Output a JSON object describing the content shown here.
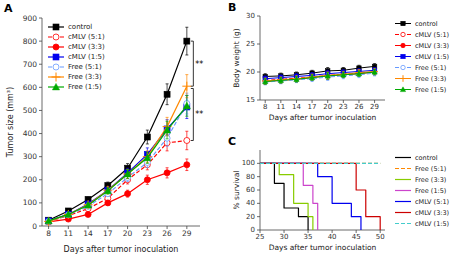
{
  "chart_data": [
    {
      "type": "line",
      "title": "A",
      "x_label": "Days after tumor inoculation",
      "y_label": "Tumor size (mm³)",
      "x": [
        8,
        11,
        14,
        17,
        20,
        23,
        26,
        29
      ],
      "xlim": [
        7,
        31
      ],
      "ylim": [
        0,
        900
      ],
      "xticks": [
        8,
        11,
        14,
        17,
        20,
        23,
        26,
        29
      ],
      "yticks": [
        0,
        100,
        200,
        300,
        400,
        500,
        600,
        700,
        800,
        900
      ],
      "legend": "upper left",
      "series": [
        {
          "name": "control",
          "color": "#000000",
          "marker": "square",
          "line_style": "solid",
          "values": [
            25,
            65,
            115,
            175,
            250,
            385,
            570,
            800
          ],
          "errors": [
            3,
            6,
            10,
            15,
            20,
            30,
            45,
            60
          ]
        },
        {
          "name": "cMLV (5:1)",
          "color": "#FF0000",
          "marker": "open-circle",
          "line_style": "dashed",
          "values": [
            20,
            45,
            75,
            120,
            200,
            265,
            360,
            370
          ],
          "errors": [
            2,
            5,
            7,
            12,
            18,
            22,
            35,
            40
          ]
        },
        {
          "name": "cMLV (3:3)",
          "color": "#FF0000",
          "marker": "circle",
          "line_style": "solid",
          "values": [
            18,
            30,
            50,
            100,
            140,
            200,
            230,
            265
          ],
          "errors": [
            2,
            4,
            6,
            10,
            15,
            20,
            22,
            25
          ]
        },
        {
          "name": "cMLV (1:5)",
          "color": "#0000EE",
          "marker": "square",
          "line_style": "solid",
          "values": [
            22,
            50,
            95,
            155,
            230,
            310,
            420,
            515
          ],
          "errors": [
            2,
            5,
            8,
            14,
            20,
            28,
            40,
            50
          ]
        },
        {
          "name": "Free (5:1)",
          "color": "#6699FF",
          "marker": "open-circle",
          "line_style": "dashed",
          "values": [
            20,
            48,
            85,
            140,
            210,
            275,
            380,
            530
          ],
          "errors": [
            2,
            5,
            7,
            12,
            18,
            22,
            35,
            45
          ]
        },
        {
          "name": "Free (3:3)",
          "color": "#FF8800",
          "marker": "plus",
          "line_style": "solid",
          "values": [
            20,
            50,
            92,
            155,
            225,
            300,
            430,
            605
          ],
          "errors": [
            2,
            5,
            8,
            14,
            20,
            25,
            40,
            50
          ]
        },
        {
          "name": "Free (1:5)",
          "color": "#00AA00",
          "marker": "triangle",
          "line_style": "solid",
          "values": [
            22,
            50,
            90,
            152,
            225,
            295,
            415,
            520
          ],
          "errors": [
            2,
            5,
            8,
            13,
            19,
            24,
            38,
            45
          ]
        }
      ],
      "annotations": [
        {
          "text": "**",
          "y1": 605,
          "y2": 800
        },
        {
          "text": "**",
          "y1": 370,
          "y2": 595
        }
      ]
    },
    {
      "type": "line",
      "title": "B",
      "x_label": "Days after tumor inoculation",
      "y_label": "Body weight (g)",
      "x": [
        8,
        11,
        14,
        17,
        20,
        23,
        26,
        29
      ],
      "xlim": [
        7,
        31
      ],
      "ylim": [
        15,
        30
      ],
      "xticks": [
        8,
        11,
        14,
        17,
        20,
        23,
        26,
        29
      ],
      "yticks": [
        15,
        20,
        25,
        30
      ],
      "legend": "right",
      "series": [
        {
          "name": "control",
          "color": "#000000",
          "marker": "square",
          "line_style": "solid",
          "values": [
            19.2,
            19.3,
            19.5,
            19.8,
            20.2,
            20.3,
            20.7,
            21.0
          ],
          "errors": [
            0.5,
            0.5,
            0.5,
            0.5,
            0.6,
            0.5,
            0.5,
            0.5
          ]
        },
        {
          "name": "cMLV (5:1)",
          "color": "#FF0000",
          "marker": "open-circle",
          "line_style": "dashed",
          "values": [
            18.5,
            18.7,
            18.9,
            19.1,
            19.4,
            19.6,
            19.8,
            20.0
          ],
          "errors": [
            0.5,
            0.5,
            0.5,
            0.5,
            0.6,
            0.5,
            0.5,
            0.5
          ]
        },
        {
          "name": "cMLV (3:3)",
          "color": "#FF0000",
          "marker": "circle",
          "line_style": "solid",
          "values": [
            18.3,
            18.5,
            18.7,
            19.0,
            19.3,
            19.5,
            19.7,
            20.0
          ],
          "errors": [
            0.5,
            0.5,
            0.5,
            0.5,
            0.6,
            0.5,
            0.5,
            0.5
          ]
        },
        {
          "name": "cMLV (1:5)",
          "color": "#0000EE",
          "marker": "square",
          "line_style": "solid",
          "values": [
            18.8,
            19.0,
            19.2,
            19.4,
            19.7,
            19.9,
            20.1,
            20.3
          ],
          "errors": [
            0.5,
            0.5,
            0.5,
            0.5,
            0.6,
            0.5,
            0.5,
            0.5
          ]
        },
        {
          "name": "Free (5:1)",
          "color": "#6699FF",
          "marker": "open-circle",
          "line_style": "dashed",
          "values": [
            18.2,
            18.4,
            18.6,
            18.8,
            19.1,
            19.3,
            19.5,
            19.8
          ],
          "errors": [
            0.5,
            0.5,
            0.5,
            0.5,
            0.6,
            0.5,
            0.5,
            0.5
          ]
        },
        {
          "name": "Free (3:3)",
          "color": "#FF8800",
          "marker": "plus",
          "line_style": "solid",
          "values": [
            18.4,
            18.6,
            18.8,
            19.1,
            19.4,
            19.6,
            19.9,
            20.1
          ],
          "errors": [
            0.5,
            0.5,
            0.5,
            0.5,
            0.6,
            0.5,
            0.5,
            0.5
          ]
        },
        {
          "name": "Free (1:5)",
          "color": "#00AA00",
          "marker": "triangle",
          "line_style": "solid",
          "values": [
            18.3,
            18.5,
            18.7,
            19.0,
            19.3,
            19.5,
            19.7,
            20.0
          ],
          "errors": [
            0.5,
            0.5,
            0.5,
            0.5,
            0.6,
            0.5,
            0.5,
            0.5
          ]
        }
      ]
    },
    {
      "type": "line",
      "title": "C",
      "x_label": "Days after tumor inoculation",
      "y_label": "% survival",
      "xlim": [
        25,
        51
      ],
      "ylim": [
        0,
        120
      ],
      "xticks": [
        25,
        30,
        35,
        40,
        45,
        50
      ],
      "yticks": [
        0,
        20,
        40,
        60,
        80,
        100
      ],
      "legend": "right",
      "series": [
        {
          "name": "control",
          "color": "#000000",
          "line_style": "solid",
          "x": [
            25,
            28,
            28,
            30,
            30,
            33,
            33,
            35,
            35
          ],
          "values": [
            100,
            100,
            70,
            70,
            33,
            33,
            20,
            20,
            0
          ]
        },
        {
          "name": "Free (5:1)",
          "color": "#FF8800",
          "line_style": "dashed",
          "x": [
            25,
            50
          ],
          "values": [
            100,
            100
          ]
        },
        {
          "name": "Free (3:3)",
          "color": "#88CC00",
          "line_style": "solid",
          "x": [
            25,
            29,
            29,
            32,
            32,
            35,
            35,
            36,
            36
          ],
          "values": [
            100,
            100,
            83,
            83,
            40,
            40,
            20,
            20,
            0
          ]
        },
        {
          "name": "Free (1:5)",
          "color": "#CC44CC",
          "line_style": "solid",
          "x": [
            25,
            34,
            34,
            36,
            36,
            37,
            37
          ],
          "values": [
            100,
            100,
            67,
            67,
            40,
            40,
            0
          ]
        },
        {
          "name": "cMLV (5:1)",
          "color": "#0000EE",
          "line_style": "solid",
          "x": [
            25,
            37,
            37,
            40,
            40,
            44,
            44,
            46,
            46
          ],
          "values": [
            100,
            100,
            80,
            80,
            40,
            40,
            20,
            20,
            0
          ]
        },
        {
          "name": "cMLV (3:3)",
          "color": "#CC0000",
          "line_style": "solid",
          "x": [
            25,
            37,
            37,
            45,
            45,
            47,
            47,
            50,
            50
          ],
          "values": [
            100,
            100,
            100,
            100,
            60,
            60,
            20,
            20,
            0
          ]
        },
        {
          "name": "cMLV (1:5)",
          "color": "#44CCCC",
          "line_style": "dashed",
          "x": [
            25,
            50
          ],
          "values": [
            100,
            100
          ]
        }
      ]
    }
  ]
}
